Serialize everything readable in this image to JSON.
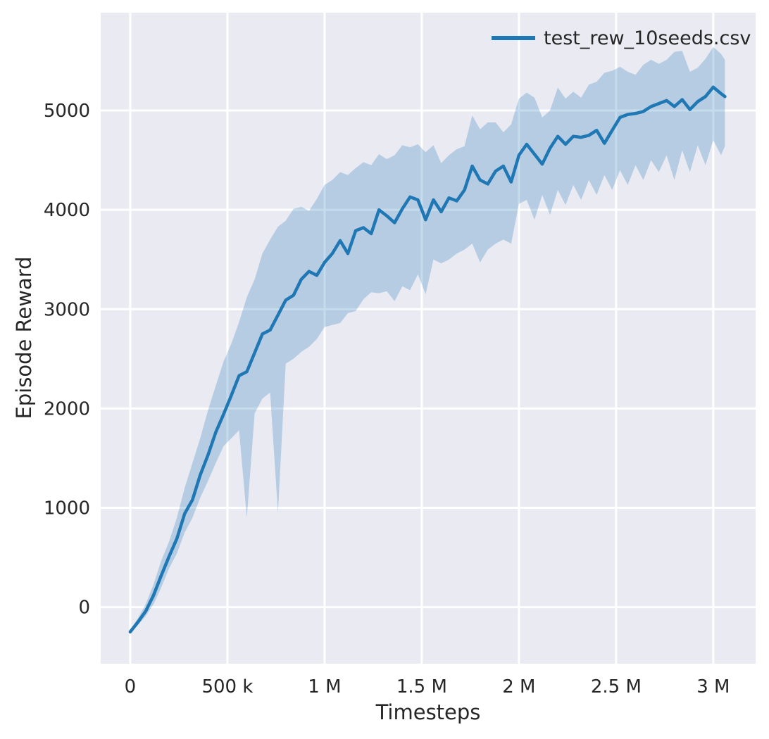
{
  "chart_data": {
    "type": "line",
    "title": "",
    "xlabel": "Timesteps",
    "ylabel": "Episode Reward",
    "grid": true,
    "legend_position": "upper right",
    "legend": [
      {
        "label": "test_rew_10seeds.csv",
        "color": "#1f77b4"
      }
    ],
    "colors": {
      "line": "#1f77b4",
      "band": "rgba(31,119,180,0.26)",
      "plot_bg": "#eaeaf2",
      "grid": "#ffffff",
      "text": "#262626",
      "figure_bg": "#ffffff"
    },
    "xlim": [
      -152000,
      3218000
    ],
    "ylim": [
      -570,
      5985
    ],
    "x_ticks": [
      {
        "value": 0,
        "label": "0"
      },
      {
        "value": 500000,
        "label": "500 k"
      },
      {
        "value": 1000000,
        "label": "1 M"
      },
      {
        "value": 1500000,
        "label": "1.5 M"
      },
      {
        "value": 2000000,
        "label": "2 M"
      },
      {
        "value": 2500000,
        "label": "2.5 M"
      },
      {
        "value": 3000000,
        "label": "3 M"
      }
    ],
    "y_ticks": [
      {
        "value": 0,
        "label": "0"
      },
      {
        "value": 1000,
        "label": "1000"
      },
      {
        "value": 2000,
        "label": "2000"
      },
      {
        "value": 3000,
        "label": "3000"
      },
      {
        "value": 4000,
        "label": "4000"
      },
      {
        "value": 5000,
        "label": "5000"
      }
    ],
    "series": [
      {
        "name": "test_rew_10seeds.csv",
        "x": [
          0,
          40000,
          80000,
          120000,
          160000,
          200000,
          240000,
          280000,
          320000,
          360000,
          400000,
          440000,
          480000,
          520000,
          560000,
          600000,
          640000,
          680000,
          720000,
          760000,
          800000,
          840000,
          880000,
          920000,
          960000,
          1000000,
          1040000,
          1080000,
          1120000,
          1160000,
          1200000,
          1240000,
          1280000,
          1320000,
          1360000,
          1400000,
          1440000,
          1480000,
          1520000,
          1560000,
          1600000,
          1640000,
          1680000,
          1720000,
          1760000,
          1800000,
          1840000,
          1880000,
          1920000,
          1960000,
          2000000,
          2040000,
          2080000,
          2120000,
          2160000,
          2200000,
          2240000,
          2280000,
          2320000,
          2360000,
          2400000,
          2440000,
          2480000,
          2520000,
          2560000,
          2600000,
          2640000,
          2680000,
          2720000,
          2760000,
          2800000,
          2840000,
          2880000,
          2920000,
          2960000,
          3000000,
          3040000,
          3060000
        ],
        "y": [
          -250,
          -150,
          -40,
          120,
          320,
          510,
          690,
          940,
          1080,
          1330,
          1530,
          1760,
          1940,
          2130,
          2330,
          2370,
          2560,
          2750,
          2790,
          2940,
          3090,
          3140,
          3300,
          3380,
          3340,
          3470,
          3560,
          3690,
          3560,
          3790,
          3820,
          3760,
          4000,
          3940,
          3870,
          4010,
          4130,
          4100,
          3900,
          4100,
          3980,
          4120,
          4090,
          4200,
          4440,
          4300,
          4260,
          4390,
          4440,
          4280,
          4550,
          4660,
          4560,
          4460,
          4620,
          4740,
          4660,
          4740,
          4730,
          4750,
          4800,
          4670,
          4800,
          4930,
          4960,
          4970,
          4990,
          5040,
          5070,
          5100,
          5040,
          5110,
          5010,
          5090,
          5140,
          5235,
          5170,
          5140
        ],
        "band_upper": [
          -230,
          -110,
          30,
          230,
          470,
          660,
          900,
          1200,
          1450,
          1700,
          1980,
          2230,
          2470,
          2650,
          2870,
          3120,
          3300,
          3560,
          3700,
          3830,
          3890,
          4010,
          4030,
          3990,
          4110,
          4250,
          4300,
          4380,
          4350,
          4420,
          4480,
          4450,
          4560,
          4510,
          4550,
          4650,
          4630,
          4660,
          4580,
          4650,
          4470,
          4550,
          4610,
          4640,
          4950,
          4810,
          4880,
          4880,
          4780,
          4860,
          5120,
          5180,
          5130,
          4930,
          5000,
          5230,
          5120,
          5190,
          5130,
          5260,
          5290,
          5380,
          5400,
          5440,
          5390,
          5360,
          5460,
          5510,
          5470,
          5510,
          5590,
          5600,
          5390,
          5430,
          5520,
          5640,
          5570,
          5510
        ],
        "band_lower": [
          -270,
          -180,
          -90,
          30,
          200,
          390,
          540,
          750,
          900,
          1100,
          1270,
          1450,
          1620,
          1700,
          1780,
          900,
          1950,
          2100,
          2160,
          950,
          2450,
          2500,
          2570,
          2620,
          2700,
          2820,
          2840,
          2860,
          2960,
          2980,
          3100,
          3170,
          3160,
          3180,
          3080,
          3230,
          3190,
          3350,
          3150,
          3500,
          3460,
          3500,
          3560,
          3600,
          3660,
          3470,
          3600,
          3660,
          3700,
          3660,
          4060,
          4100,
          3900,
          4150,
          3950,
          4200,
          4050,
          4250,
          4100,
          4300,
          4150,
          4350,
          4200,
          4400,
          4250,
          4450,
          4300,
          4500,
          4380,
          4550,
          4300,
          4600,
          4380,
          4650,
          4450,
          4700,
          4550,
          4640
        ]
      }
    ]
  }
}
